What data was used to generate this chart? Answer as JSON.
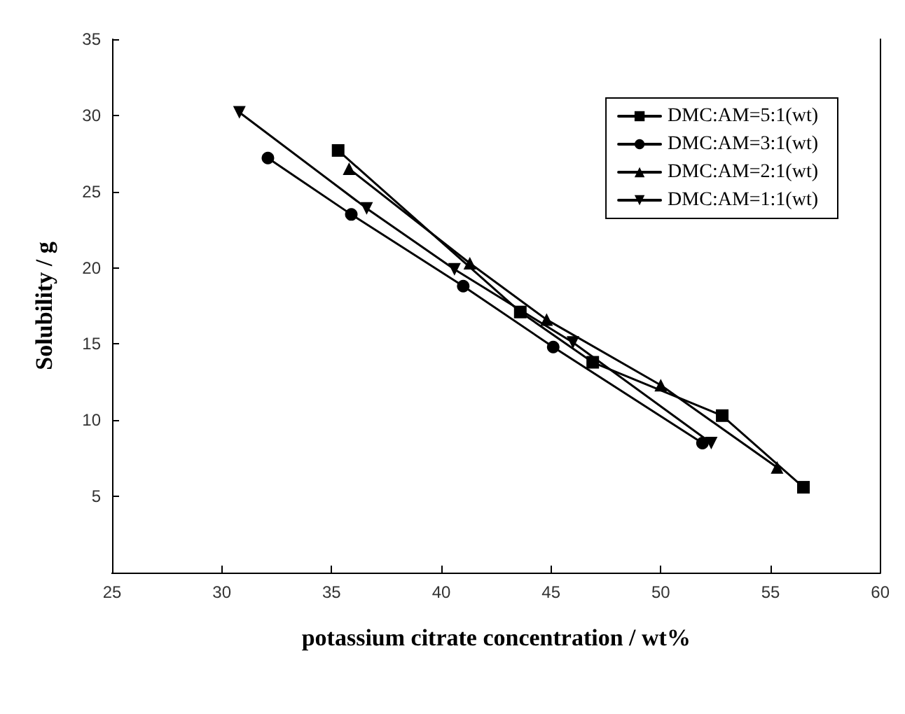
{
  "chart_data": {
    "type": "line",
    "xlabel": "potassium citrate concentration / wt%",
    "ylabel": "Solubility / g",
    "xlim": [
      25,
      60
    ],
    "xticks": [
      25,
      30,
      35,
      40,
      45,
      50,
      55,
      60
    ],
    "ylim": [
      0,
      35
    ],
    "yticks": [
      5,
      10,
      15,
      20,
      25,
      30,
      35
    ],
    "grid": false,
    "legend": "top right",
    "line_style": "solid",
    "series": [
      {
        "name": "DMC:AM=5:1(wt)",
        "color": "#000000",
        "marker": "square",
        "x": [
          35.3,
          43.6,
          46.9,
          52.8,
          56.5
        ],
        "values": [
          27.7,
          17.1,
          13.8,
          10.3,
          5.6
        ]
      },
      {
        "name": "DMC:AM=3:1(wt)",
        "color": "#000000",
        "marker": "circle",
        "x": [
          32.1,
          35.9,
          41.0,
          45.1,
          51.9
        ],
        "values": [
          27.2,
          23.5,
          18.8,
          14.8,
          8.5
        ]
      },
      {
        "name": "DMC:AM=2:1(wt)",
        "color": "#000000",
        "marker": "triangle",
        "x": [
          35.8,
          41.3,
          44.8,
          50.0,
          55.3
        ],
        "values": [
          26.5,
          20.3,
          16.6,
          12.3,
          6.9
        ]
      },
      {
        "name": "DMC:AM=1:1(wt)",
        "color": "#000000",
        "marker": "triangle-down",
        "x": [
          30.8,
          36.6,
          40.6,
          46.0,
          52.3
        ],
        "values": [
          30.2,
          23.9,
          19.9,
          15.1,
          8.5
        ]
      }
    ]
  }
}
